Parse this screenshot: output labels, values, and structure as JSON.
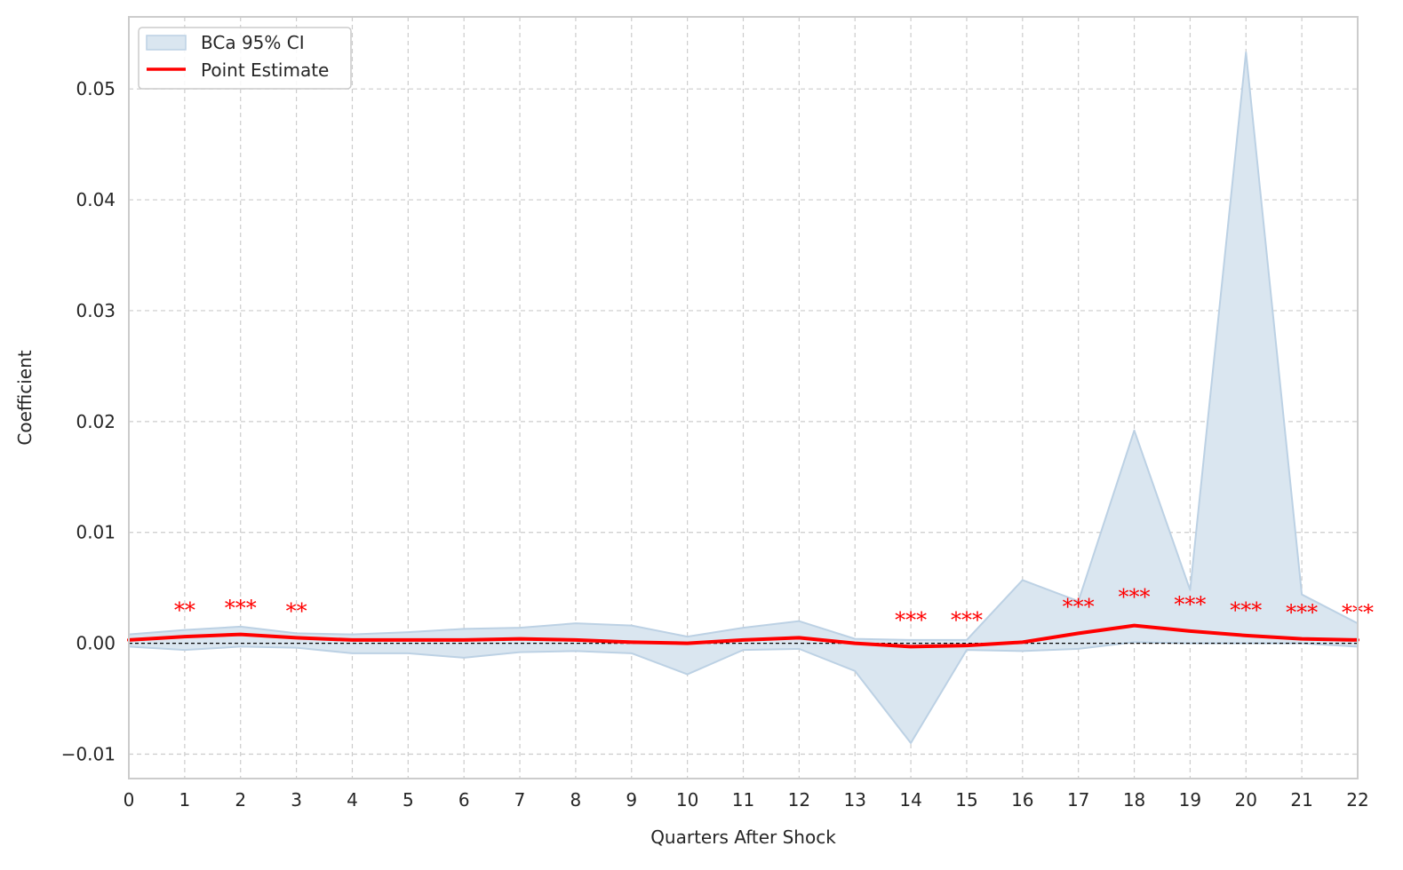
{
  "chart_data": {
    "type": "line",
    "title": "",
    "xlabel": "Quarters After Shock",
    "ylabel": "Coefficient",
    "xlim": [
      0,
      22
    ],
    "ylim": [
      -0.0122,
      0.0565
    ],
    "grid": true,
    "grid_style": "dashed",
    "legend_placement": "top-left",
    "x_ticks": [
      0,
      1,
      2,
      3,
      4,
      5,
      6,
      7,
      8,
      9,
      10,
      11,
      12,
      13,
      14,
      15,
      16,
      17,
      18,
      19,
      20,
      21,
      22
    ],
    "y_ticks": [
      -0.01,
      0.0,
      0.01,
      0.02,
      0.03,
      0.04,
      0.05
    ],
    "y_tick_labels": [
      "−0.01",
      "0.00",
      "0.01",
      "0.02",
      "0.03",
      "0.04",
      "0.05"
    ],
    "reference_line": 0.0,
    "x": [
      0,
      1,
      2,
      3,
      4,
      5,
      6,
      7,
      8,
      9,
      10,
      11,
      12,
      13,
      14,
      15,
      16,
      17,
      18,
      19,
      20,
      21,
      22
    ],
    "series": [
      {
        "name": "BCa 95% CI",
        "kind": "band",
        "color": "#dae6f0",
        "edge_color": "#bcd1e4",
        "lower": [
          -0.0003,
          -0.0006,
          -0.0003,
          -0.0004,
          -0.0009,
          -0.0009,
          -0.0013,
          -0.0008,
          -0.0007,
          -0.0009,
          -0.0028,
          -0.0006,
          -0.0005,
          -0.0025,
          -0.009,
          -0.0006,
          -0.0007,
          -0.0005,
          0.0001,
          0.0,
          0.0,
          0.0,
          -0.0003
        ],
        "upper": [
          0.0008,
          0.0012,
          0.0015,
          0.0009,
          0.0008,
          0.001,
          0.0013,
          0.0014,
          0.0018,
          0.0016,
          0.0006,
          0.0014,
          0.002,
          0.0004,
          0.0003,
          0.0003,
          0.0057,
          0.0038,
          0.0192,
          0.0048,
          0.0533,
          0.0044,
          0.0018
        ]
      },
      {
        "name": "Point Estimate",
        "kind": "line",
        "color": "#ff0000",
        "values": [
          0.0003,
          0.0006,
          0.0008,
          0.0005,
          0.0003,
          0.0003,
          0.0003,
          0.0004,
          0.0003,
          0.0001,
          0.0,
          0.0003,
          0.0005,
          0.0,
          -0.0003,
          -0.0002,
          0.0001,
          0.0009,
          0.0016,
          0.0011,
          0.0007,
          0.0004,
          0.0003
        ]
      }
    ],
    "annotations": [
      {
        "x": 1,
        "y": 0.0033,
        "text": "**"
      },
      {
        "x": 2,
        "y": 0.0035,
        "text": "***"
      },
      {
        "x": 3,
        "y": 0.0032,
        "text": "**"
      },
      {
        "x": 14,
        "y": 0.0024,
        "text": "***"
      },
      {
        "x": 15,
        "y": 0.0024,
        "text": "***"
      },
      {
        "x": 17,
        "y": 0.0036,
        "text": "***"
      },
      {
        "x": 18,
        "y": 0.0045,
        "text": "***"
      },
      {
        "x": 19,
        "y": 0.0038,
        "text": "***"
      },
      {
        "x": 20,
        "y": 0.0033,
        "text": "***"
      },
      {
        "x": 21,
        "y": 0.0031,
        "text": "***"
      },
      {
        "x": 22,
        "y": 0.0031,
        "text": "***"
      }
    ]
  },
  "colors": {
    "grid": "#cccccc",
    "frame": "#cccccc",
    "reference_line": "#000000",
    "annotation": "#ff0000"
  }
}
